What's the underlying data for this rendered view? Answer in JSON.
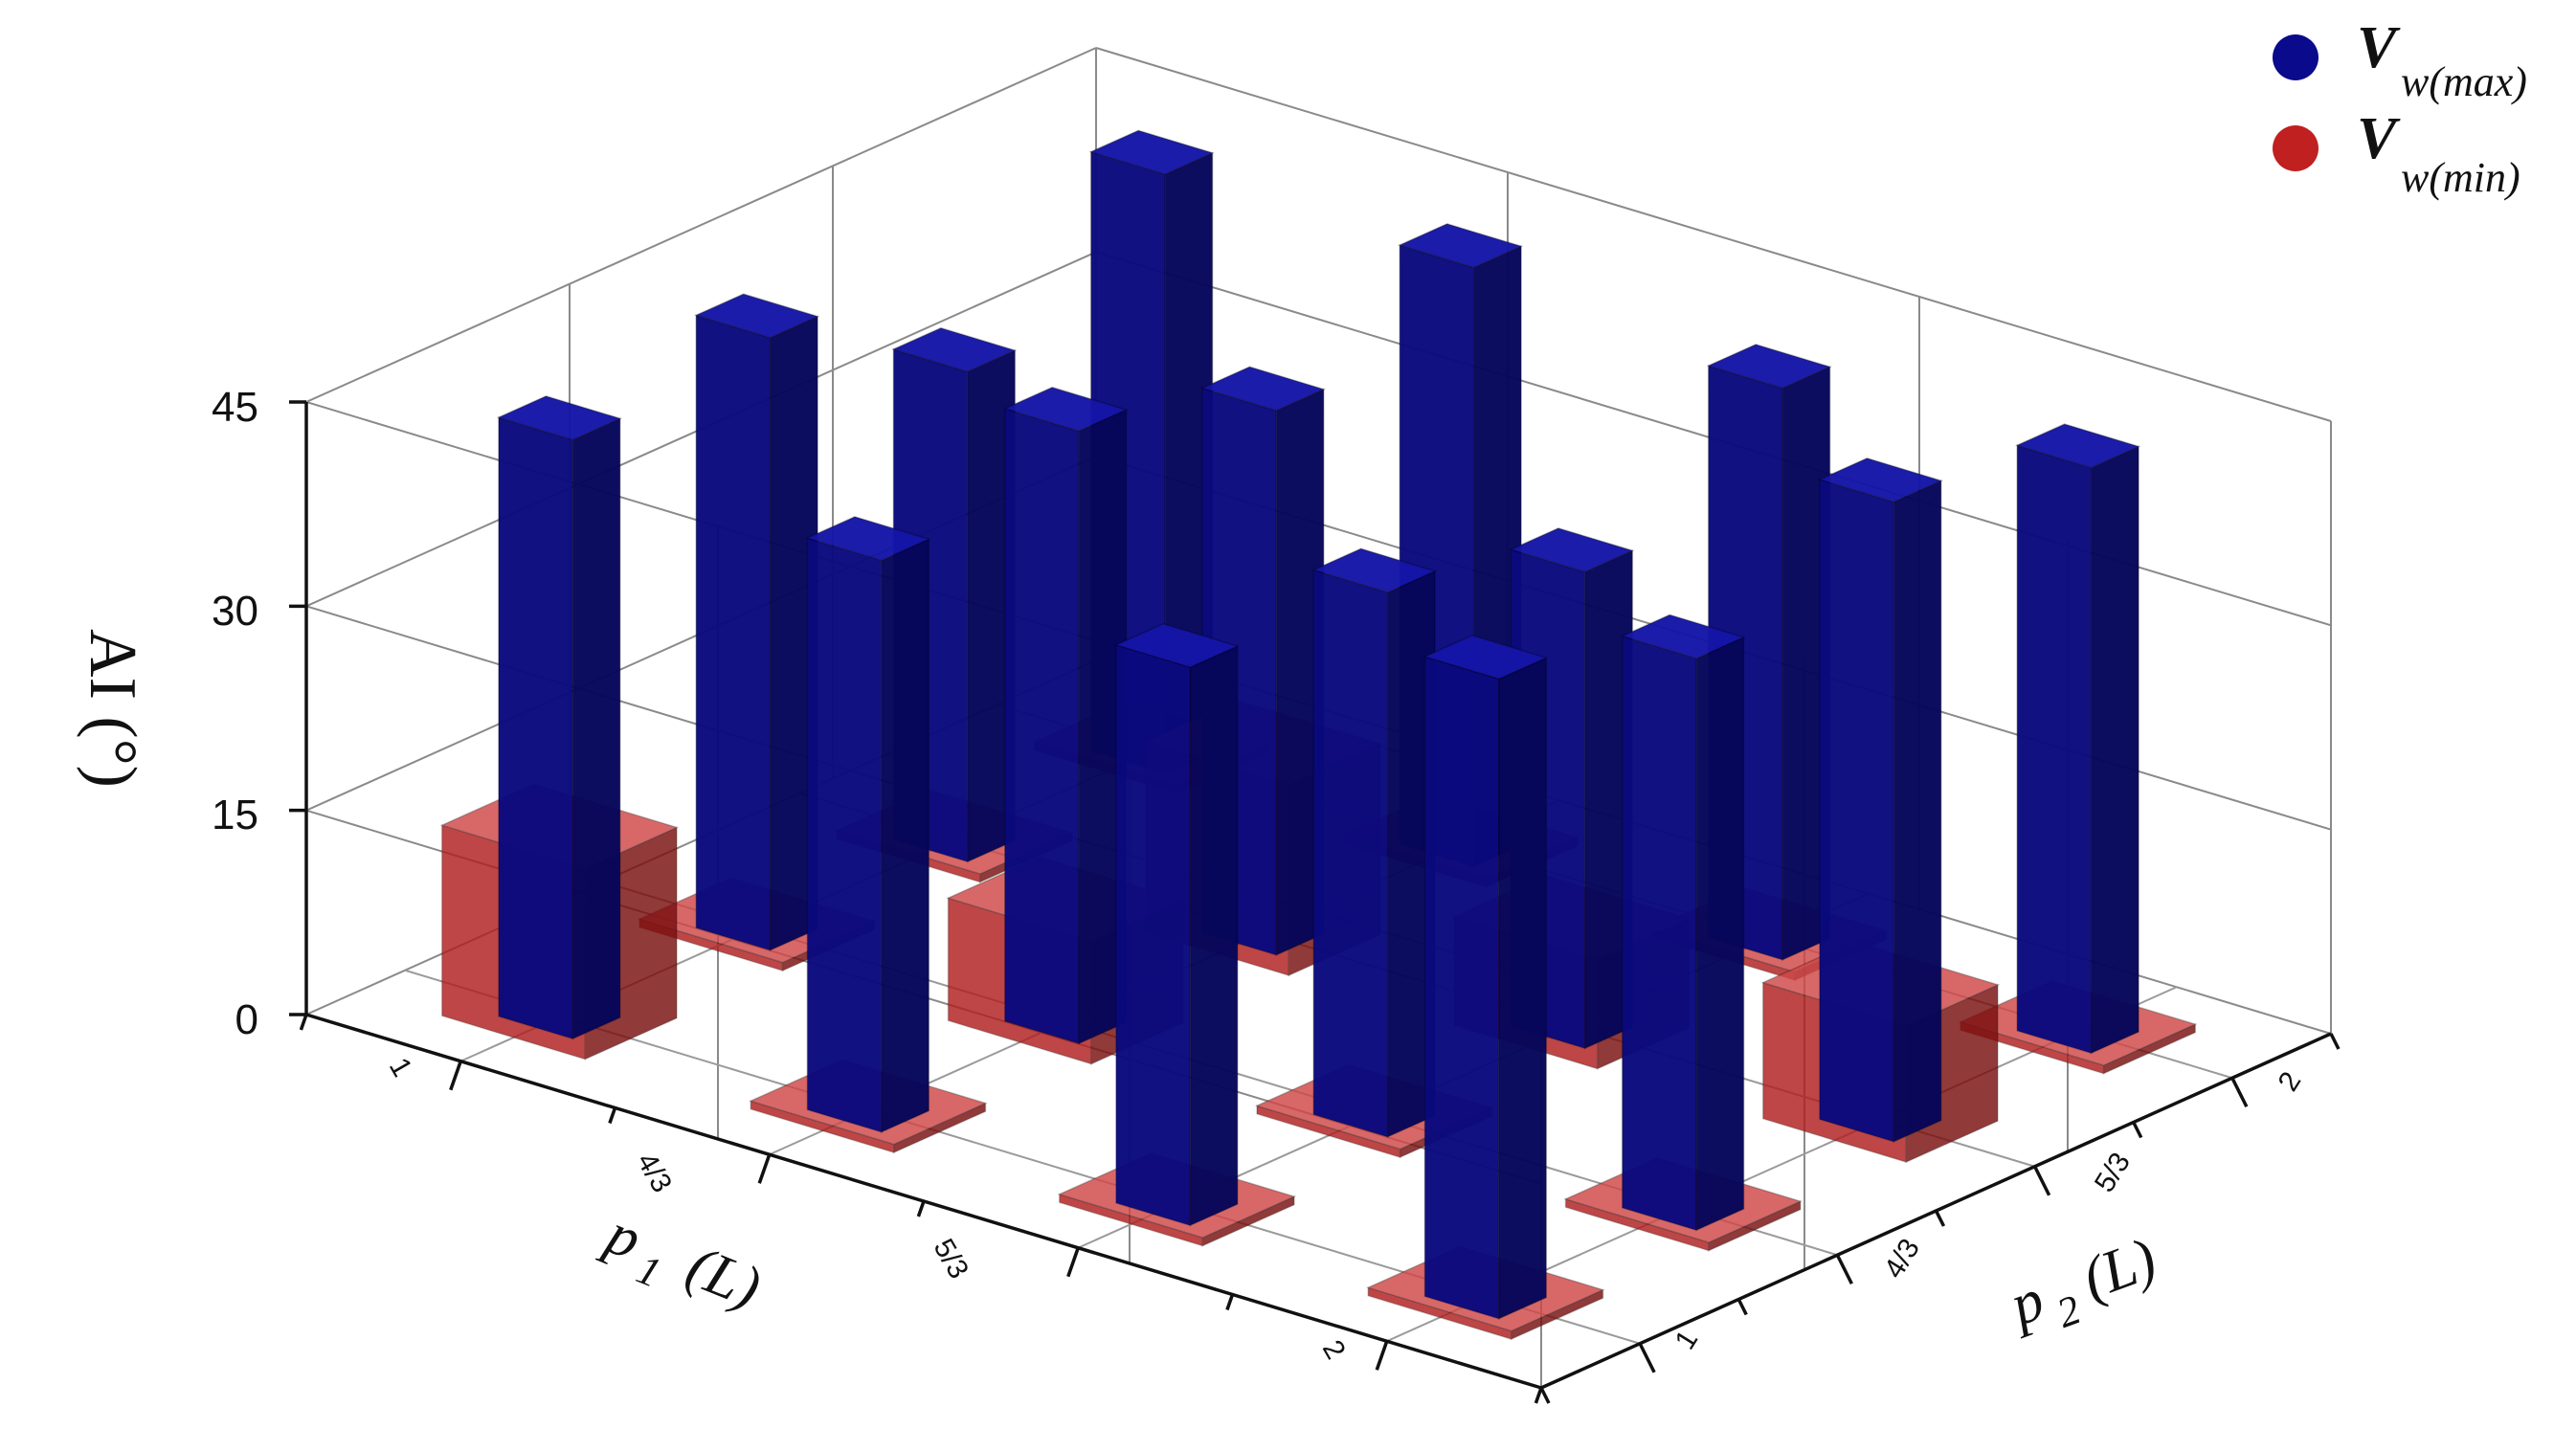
{
  "chart_data": {
    "type": "bar3d",
    "x_axis": {
      "label_main": "p",
      "label_sub": "1",
      "label_unit": "(L)",
      "categories": [
        "1",
        "4/3",
        "5/3",
        "2"
      ]
    },
    "y_axis": {
      "label_main": "p",
      "label_sub": "2",
      "label_unit": "(L)",
      "categories": [
        "1",
        "4/3",
        "5/3",
        "2"
      ]
    },
    "z_axis": {
      "label": "AI (°)",
      "ticks": [
        "0",
        "15",
        "30",
        "45"
      ],
      "range": [
        0,
        45
      ]
    },
    "grid": true,
    "legend_position": "top-right",
    "colors": {
      "max": "#0a0a8c",
      "min": "#c02020"
    },
    "series": [
      {
        "key": "max",
        "name_main": "V",
        "name_sub": "w(max)",
        "values": [
          [
            44,
            45,
            36,
            44
          ],
          [
            42,
            45,
            40,
            44
          ],
          [
            41,
            40,
            35,
            42
          ],
          [
            47,
            42,
            47,
            43
          ]
        ]
      },
      {
        "key": "min",
        "name_main": "V",
        "name_sub": "w(min)",
        "values": [
          [
            14,
            0,
            0,
            0
          ],
          [
            0,
            9,
            14,
            0
          ],
          [
            0,
            0,
            8,
            0
          ],
          [
            0,
            0,
            10,
            0
          ]
        ]
      }
    ]
  }
}
